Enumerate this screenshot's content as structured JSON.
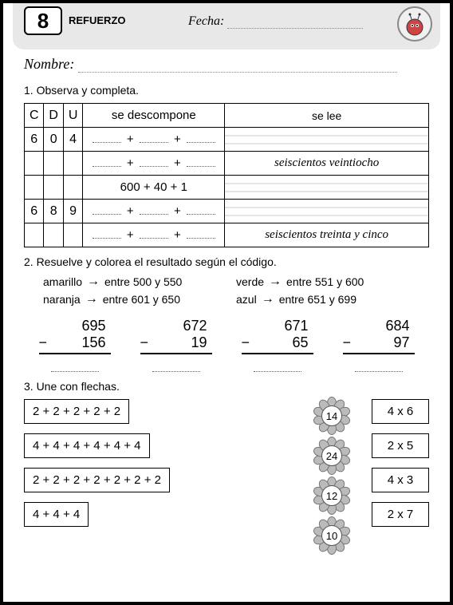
{
  "header": {
    "num": "8",
    "ref": "REFUERZO",
    "fecha": "Fecha:",
    "nombre": "Nombre:"
  },
  "q1": {
    "title": "1. Observa y completa.",
    "cols": {
      "c": "C",
      "d": "D",
      "u": "U",
      "desc": "se descompone",
      "lee": "se lee"
    },
    "rows": [
      {
        "c": "6",
        "d": "0",
        "u": "4",
        "desc_type": "blank",
        "lee": ""
      },
      {
        "c": "",
        "d": "",
        "u": "",
        "desc_type": "blank",
        "lee": "seiscientos veintiocho"
      },
      {
        "c": "",
        "d": "",
        "u": "",
        "desc_type": "filled",
        "desc": "600 + 40 + 1",
        "lee": ""
      },
      {
        "c": "6",
        "d": "8",
        "u": "9",
        "desc_type": "blank",
        "lee": ""
      },
      {
        "c": "",
        "d": "",
        "u": "",
        "desc_type": "blank",
        "lee": "seiscientos treinta y cinco"
      }
    ]
  },
  "q2": {
    "title": "2. Resuelve y colorea el resultado según el código.",
    "legend": [
      {
        "color": "amarillo",
        "range": "entre 500 y 550"
      },
      {
        "color": "verde",
        "range": "entre 551 y 600"
      },
      {
        "color": "naranja",
        "range": "entre 601 y 650"
      },
      {
        "color": "azul",
        "range": "entre 651 y 699"
      }
    ],
    "problems": [
      {
        "a": "695",
        "b": "156"
      },
      {
        "a": "672",
        "b": "19"
      },
      {
        "a": "671",
        "b": "65"
      },
      {
        "a": "684",
        "b": "97"
      }
    ]
  },
  "q3": {
    "title": "3. Une con flechas.",
    "left": [
      "2 + 2 + 2 + 2 + 2",
      "4 + 4 + 4 + 4 + 4 + 4",
      "2 + 2 + 2 + 2 + 2 + 2 + 2",
      "4 + 4 + 4"
    ],
    "mid": [
      "14",
      "24",
      "12",
      "10"
    ],
    "right": [
      "4 x 6",
      "2 x 5",
      "4 x 3",
      "2 x 7"
    ]
  }
}
